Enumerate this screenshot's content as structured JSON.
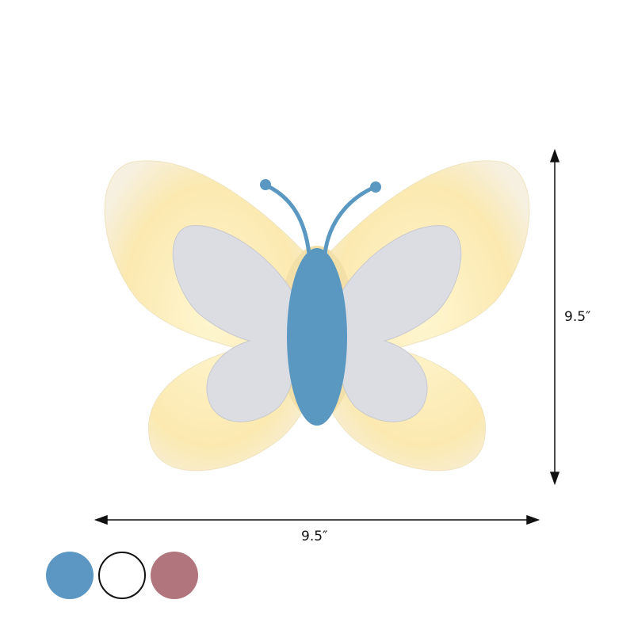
{
  "product": {
    "height_label": "9.5″",
    "width_label": "9.5″",
    "body_color": "#5a98c2",
    "wing_color": "#fff3c4",
    "inner_wing_color": "#dcdde3"
  },
  "swatches": [
    {
      "name": "blue",
      "color": "#5b97c2"
    },
    {
      "name": "white",
      "color": "#ffffff"
    },
    {
      "name": "pink",
      "color": "#b0757d"
    }
  ]
}
